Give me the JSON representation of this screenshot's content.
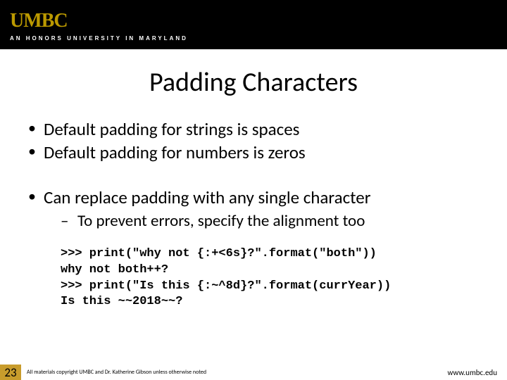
{
  "header": {
    "logo": "UMBC",
    "tagline": "AN HONORS UNIVERSITY IN MARYLAND"
  },
  "title": "Padding Characters",
  "bullets": {
    "b1": "Default padding for strings is spaces",
    "b2": "Default padding for numbers is zeros",
    "b3": "Can replace padding with any single character",
    "sub1": "To prevent errors, specify the alignment too"
  },
  "code": {
    "l1": ">>> print(\"why not {:+<6s}?\".format(\"both\"))",
    "l2": "why not both++?",
    "l3": ">>> print(\"Is this {:~^8d}?\".format(currYear))",
    "l4": "Is this ~~2018~~?"
  },
  "footer": {
    "page": "23",
    "copyright": "All materials copyright UMBC and Dr. Katherine Gibson unless otherwise noted",
    "url": "www.umbc.edu"
  },
  "colors": {
    "header_bg": "#000000",
    "logo_color": "#bb9900",
    "accent": "#c89c2c",
    "text": "#000000",
    "bg": "#ffffff"
  },
  "fonts": {
    "title_size": 38,
    "bullet_size": 25,
    "sub_size": 23,
    "code_size": 17
  }
}
